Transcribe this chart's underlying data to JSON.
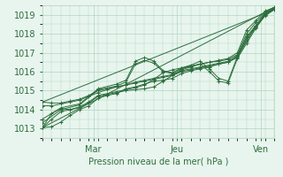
{
  "bg_color": "#e8f5ee",
  "grid_color": "#b0d4bc",
  "line_color": "#2d6e3e",
  "xlabel": "Pression niveau de la mer( hPa )",
  "ylim": [
    1012.5,
    1019.5
  ],
  "xlim": [
    0,
    100
  ],
  "yticks": [
    1013,
    1014,
    1015,
    1016,
    1017,
    1018,
    1019
  ],
  "xtick_positions": [
    22,
    58,
    94
  ],
  "xtick_labels": [
    "Mar",
    "Jeu",
    "Ven"
  ],
  "lines": [
    [
      0,
      1013.05,
      4,
      1013.8,
      8,
      1014.05,
      12,
      1014.0,
      16,
      1014.1,
      20,
      1014.35,
      24,
      1014.7,
      28,
      1014.8,
      32,
      1014.9,
      36,
      1015.0,
      40,
      1015.05,
      44,
      1015.1,
      48,
      1015.2,
      52,
      1015.5,
      56,
      1015.8,
      60,
      1016.1,
      64,
      1016.25,
      68,
      1016.4,
      72,
      1016.5,
      76,
      1016.6,
      80,
      1016.7,
      84,
      1017.0,
      88,
      1018.2,
      92,
      1018.7,
      96,
      1019.2,
      100,
      1019.4
    ],
    [
      0,
      1013.05,
      4,
      1013.5,
      8,
      1013.9,
      12,
      1014.0,
      16,
      1014.15,
      20,
      1014.4,
      24,
      1014.75,
      28,
      1014.85,
      32,
      1014.95,
      36,
      1015.05,
      40,
      1015.15,
      44,
      1015.3,
      48,
      1015.6,
      52,
      1015.95,
      56,
      1016.1,
      60,
      1016.2,
      64,
      1016.3,
      68,
      1016.4,
      72,
      1016.5,
      76,
      1016.55,
      80,
      1016.65,
      84,
      1016.9,
      88,
      1018.0,
      92,
      1018.6,
      96,
      1019.1,
      100,
      1019.35
    ],
    [
      0,
      1014.2,
      4,
      1014.2,
      8,
      1014.3,
      12,
      1014.4,
      16,
      1014.5,
      20,
      1014.7,
      24,
      1014.9,
      28,
      1015.05,
      32,
      1015.2,
      36,
      1015.3,
      40,
      1015.4,
      44,
      1015.5,
      48,
      1015.6,
      52,
      1015.7,
      56,
      1015.8,
      60,
      1016.0,
      64,
      1016.1,
      68,
      1016.2,
      72,
      1016.3,
      76,
      1016.4,
      80,
      1016.5,
      84,
      1016.8,
      88,
      1017.8,
      92,
      1018.4,
      96,
      1019.0,
      100,
      1019.3
    ],
    [
      0,
      1014.4,
      4,
      1014.35,
      8,
      1014.35,
      12,
      1014.45,
      16,
      1014.55,
      20,
      1014.75,
      24,
      1015.0,
      28,
      1015.1,
      32,
      1015.2,
      36,
      1015.3,
      40,
      1015.45,
      44,
      1015.55,
      48,
      1015.65,
      52,
      1015.75,
      56,
      1015.85,
      60,
      1016.05,
      64,
      1016.15,
      68,
      1016.25,
      72,
      1016.35,
      76,
      1016.45,
      80,
      1016.55,
      84,
      1016.85,
      88,
      1017.85,
      92,
      1018.45,
      96,
      1019.05,
      100,
      1019.32
    ],
    [
      0,
      1013.3,
      8,
      1014.0,
      16,
      1014.25,
      24,
      1015.05,
      32,
      1015.25,
      36,
      1015.45,
      40,
      1016.4,
      44,
      1016.6,
      48,
      1016.45,
      52,
      1016.0,
      56,
      1015.9,
      60,
      1016.15,
      64,
      1016.3,
      68,
      1016.4,
      72,
      1016.0,
      76,
      1015.5,
      80,
      1015.4,
      84,
      1016.7,
      88,
      1017.5,
      92,
      1018.3,
      96,
      1019.0,
      100,
      1019.3
    ],
    [
      0,
      1013.5,
      8,
      1014.1,
      16,
      1014.3,
      24,
      1015.1,
      32,
      1015.35,
      36,
      1015.55,
      40,
      1016.55,
      44,
      1016.75,
      48,
      1016.55,
      52,
      1016.05,
      56,
      1015.95,
      60,
      1016.2,
      64,
      1016.35,
      68,
      1016.55,
      72,
      1016.15,
      76,
      1015.65,
      80,
      1015.5,
      84,
      1016.8,
      88,
      1017.6,
      92,
      1018.4,
      96,
      1019.1,
      100,
      1019.38
    ],
    [
      0,
      1013.05,
      4,
      1013.1,
      8,
      1013.35,
      12,
      1013.7,
      16,
      1014.0,
      20,
      1014.2,
      24,
      1014.6,
      28,
      1014.75,
      32,
      1014.85,
      36,
      1015.1,
      40,
      1015.2,
      44,
      1015.35,
      48,
      1015.5,
      52,
      1015.55,
      56,
      1015.65,
      60,
      1015.9,
      64,
      1016.05,
      68,
      1016.15,
      72,
      1016.25,
      76,
      1016.4,
      80,
      1016.5,
      84,
      1016.75,
      88,
      1017.7,
      92,
      1018.35,
      96,
      1018.95,
      100,
      1019.28
    ]
  ],
  "envelope_lines": [
    [
      0,
      1013.05,
      100,
      1019.4
    ],
    [
      0,
      1014.4,
      100,
      1019.28
    ]
  ]
}
